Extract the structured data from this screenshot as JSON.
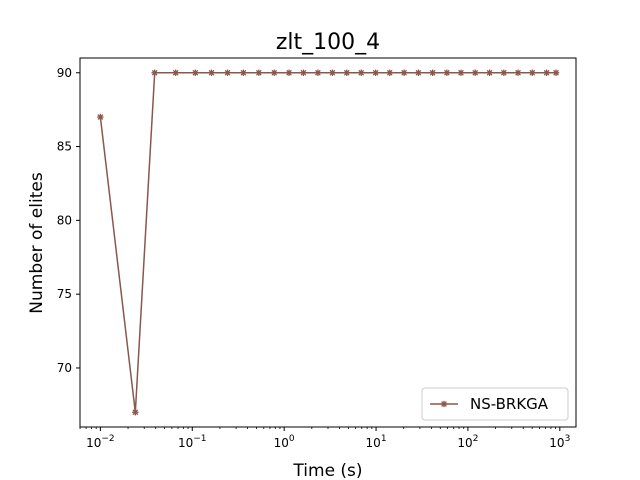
{
  "chart_data": {
    "type": "line",
    "title": "zlt_100_4",
    "xlabel": "Time (s)",
    "ylabel": "Number of elites",
    "xscale": "log",
    "xlim": [
      0.006,
      1500
    ],
    "ylim": [
      66,
      91
    ],
    "yticks": [
      70,
      75,
      80,
      85,
      90
    ],
    "xticks": [
      {
        "value": 0.01,
        "base": "10",
        "exp": "−2"
      },
      {
        "value": 0.1,
        "base": "10",
        "exp": "−1"
      },
      {
        "value": 1,
        "base": "10",
        "exp": "0"
      },
      {
        "value": 10,
        "base": "10",
        "exp": "1"
      },
      {
        "value": 100,
        "base": "10",
        "exp": "2"
      },
      {
        "value": 1000,
        "base": "10",
        "exp": "3"
      }
    ],
    "grid": false,
    "legend_position": "lower-right",
    "series": [
      {
        "name": "NS-BRKGA",
        "color": "#8c564b",
        "marker": "star",
        "x": [
          0.01,
          0.024,
          0.039,
          0.066,
          0.108,
          0.162,
          0.242,
          0.36,
          0.53,
          0.78,
          1.13,
          1.62,
          2.33,
          3.35,
          4.8,
          6.9,
          9.9,
          14.1,
          20.2,
          28.9,
          41.3,
          59,
          84,
          120,
          172,
          246,
          351,
          502,
          718,
          910
        ],
        "y": [
          87,
          67,
          90,
          90,
          90,
          90,
          90,
          90,
          90,
          90,
          90,
          90,
          90,
          90,
          90,
          90,
          90,
          90,
          90,
          90,
          90,
          90,
          90,
          90,
          90,
          90,
          90,
          90,
          90,
          90
        ]
      }
    ]
  }
}
